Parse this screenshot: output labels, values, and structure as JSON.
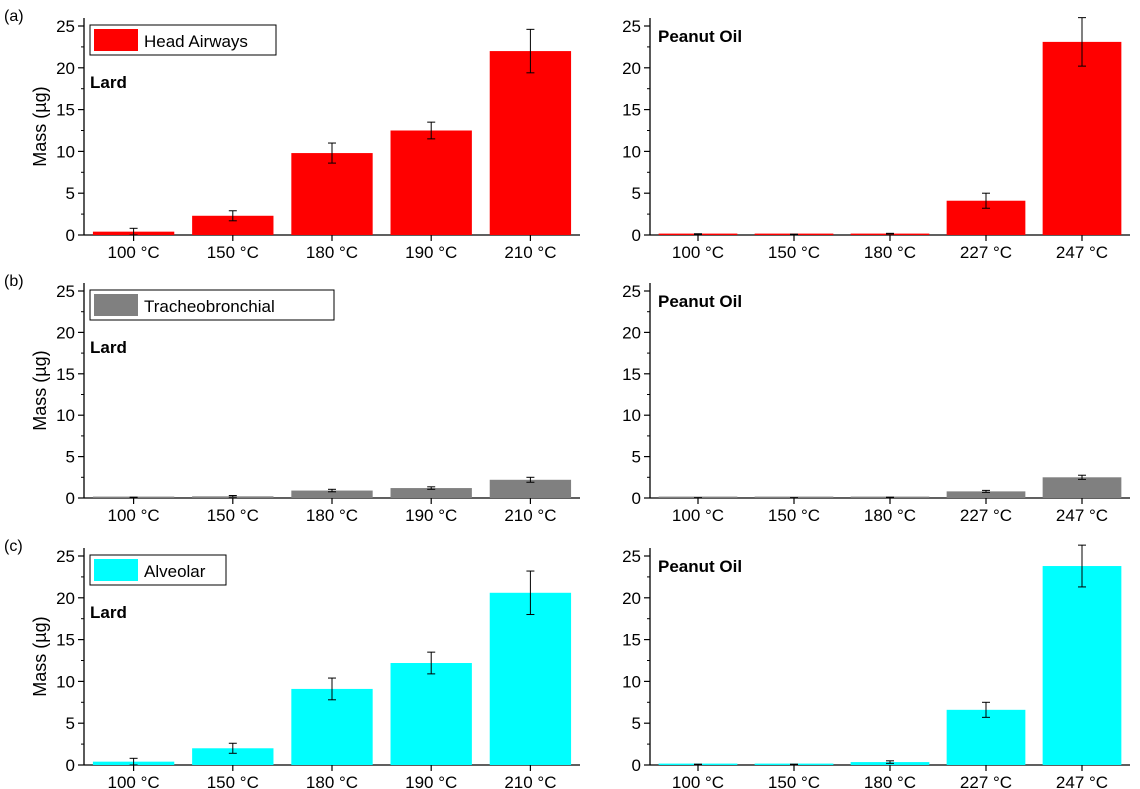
{
  "chart_data": [
    {
      "panel": "(a)",
      "type": "bar",
      "inset_label": "Lard",
      "legend": "Head Airways",
      "ylabel": "Mass (µg)",
      "color": "#ff0000",
      "categories": [
        "100 °C",
        "150 °C",
        "180 °C",
        "190 °C",
        "210 °C"
      ],
      "values": [
        0.4,
        2.3,
        9.8,
        12.5,
        22.0
      ],
      "errors": [
        0.4,
        0.6,
        1.2,
        1.0,
        2.6
      ],
      "ylim": [
        0,
        25
      ],
      "yticks": [
        "0",
        "5",
        "10",
        "15",
        "20",
        "25"
      ]
    },
    {
      "panel": "",
      "type": "bar",
      "inset_label": "Peanut Oil",
      "color": "#ff0000",
      "categories": [
        "100 °C",
        "150 °C",
        "180 °C",
        "227 °C",
        "247 °C"
      ],
      "values": [
        0.1,
        0.05,
        0.15,
        4.1,
        23.1
      ],
      "errors": [
        0.05,
        0.05,
        0.05,
        0.9,
        2.9
      ],
      "ylim": [
        0,
        25
      ],
      "yticks": [
        "0",
        "5",
        "10",
        "15",
        "20",
        "25"
      ]
    },
    {
      "panel": "(b)",
      "type": "bar",
      "inset_label": "Lard",
      "legend": "Tracheobronchial",
      "ylabel": "Mass (µg)",
      "color": "#808080",
      "categories": [
        "100 °C",
        "150 °C",
        "180 °C",
        "190 °C",
        "210 °C"
      ],
      "values": [
        0.05,
        0.2,
        0.9,
        1.2,
        2.2
      ],
      "errors": [
        0.05,
        0.1,
        0.15,
        0.15,
        0.3
      ],
      "ylim": [
        0,
        25
      ],
      "yticks": [
        "0",
        "5",
        "10",
        "15",
        "20",
        "25"
      ]
    },
    {
      "panel": "",
      "type": "bar",
      "inset_label": "Peanut Oil",
      "color": "#808080",
      "categories": [
        "100 °C",
        "150 °C",
        "180 °C",
        "227 °C",
        "247 °C"
      ],
      "values": [
        0.02,
        0.02,
        0.05,
        0.8,
        2.5
      ],
      "errors": [
        0.02,
        0.02,
        0.05,
        0.12,
        0.25
      ],
      "ylim": [
        0,
        25
      ],
      "yticks": [
        "0",
        "5",
        "10",
        "15",
        "20",
        "25"
      ]
    },
    {
      "panel": "(c)",
      "type": "bar",
      "inset_label": "Lard",
      "legend": "Alveolar",
      "ylabel": "Mass (µg)",
      "color": "#00ffff",
      "categories": [
        "100 °C",
        "150 °C",
        "180 °C",
        "190 °C",
        "210 °C"
      ],
      "values": [
        0.4,
        2.0,
        9.1,
        12.2,
        20.6
      ],
      "errors": [
        0.4,
        0.6,
        1.3,
        1.3,
        2.6
      ],
      "ylim": [
        0,
        25
      ],
      "yticks": [
        "0",
        "5",
        "10",
        "15",
        "20",
        "25"
      ]
    },
    {
      "panel": "",
      "type": "bar",
      "inset_label": "Peanut Oil",
      "color": "#00ffff",
      "categories": [
        "100 °C",
        "150 °C",
        "180 °C",
        "227 °C",
        "247 °C"
      ],
      "values": [
        0.05,
        0.05,
        0.35,
        6.6,
        23.8
      ],
      "errors": [
        0.05,
        0.05,
        0.15,
        0.9,
        2.5
      ],
      "ylim": [
        0,
        25
      ],
      "yticks": [
        "0",
        "5",
        "10",
        "15",
        "20",
        "25"
      ]
    }
  ]
}
